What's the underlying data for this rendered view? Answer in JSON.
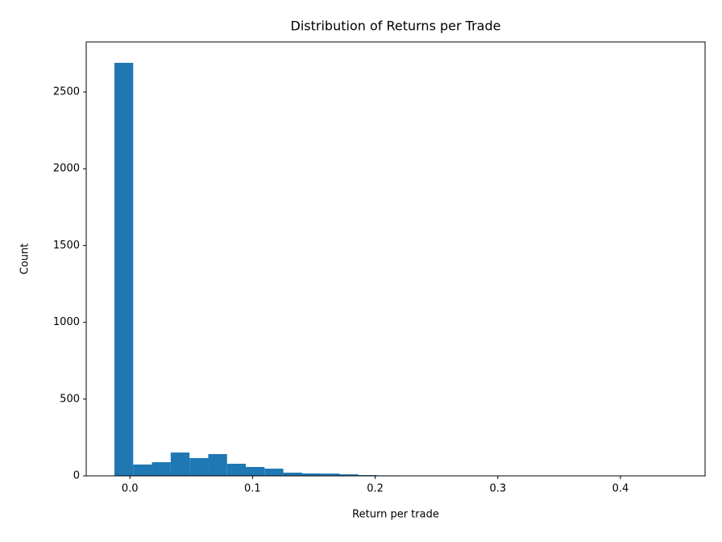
{
  "chart_data": {
    "type": "histogram",
    "title": "Distribution of Returns per Trade",
    "x_label": "Return per trade",
    "y_label": "Count",
    "color": "#1f77b4",
    "bins": [
      -0.0126,
      0.0027,
      0.018,
      0.0333,
      0.0486,
      0.0639,
      0.0792,
      0.0945,
      0.1098,
      0.1251,
      0.1404,
      0.1557,
      0.171,
      0.1863,
      0.2016,
      0.2169,
      0.2322,
      0.2475,
      0.2628,
      0.2781,
      0.2934,
      0.3087,
      0.324,
      0.3393,
      0.3546,
      0.3699,
      0.3852,
      0.4005,
      0.4158,
      0.4311,
      0.4464
    ],
    "counts": [
      2690,
      74,
      89,
      152,
      116,
      142,
      79,
      58,
      47,
      21,
      16,
      15,
      10,
      5,
      3,
      2,
      1,
      1,
      1,
      0,
      1,
      0,
      0,
      1,
      0,
      0,
      0,
      0,
      0,
      1
    ],
    "xlim": [
      -0.0356,
      0.469
    ],
    "xticks": [
      {
        "value": 0,
        "label": "0.0"
      },
      0.1,
      0.2,
      0.3,
      0.4
    ],
    "ylim": [
      0,
      2826
    ],
    "yticks": [
      0,
      500,
      1000,
      1500,
      2000,
      2500
    ]
  }
}
